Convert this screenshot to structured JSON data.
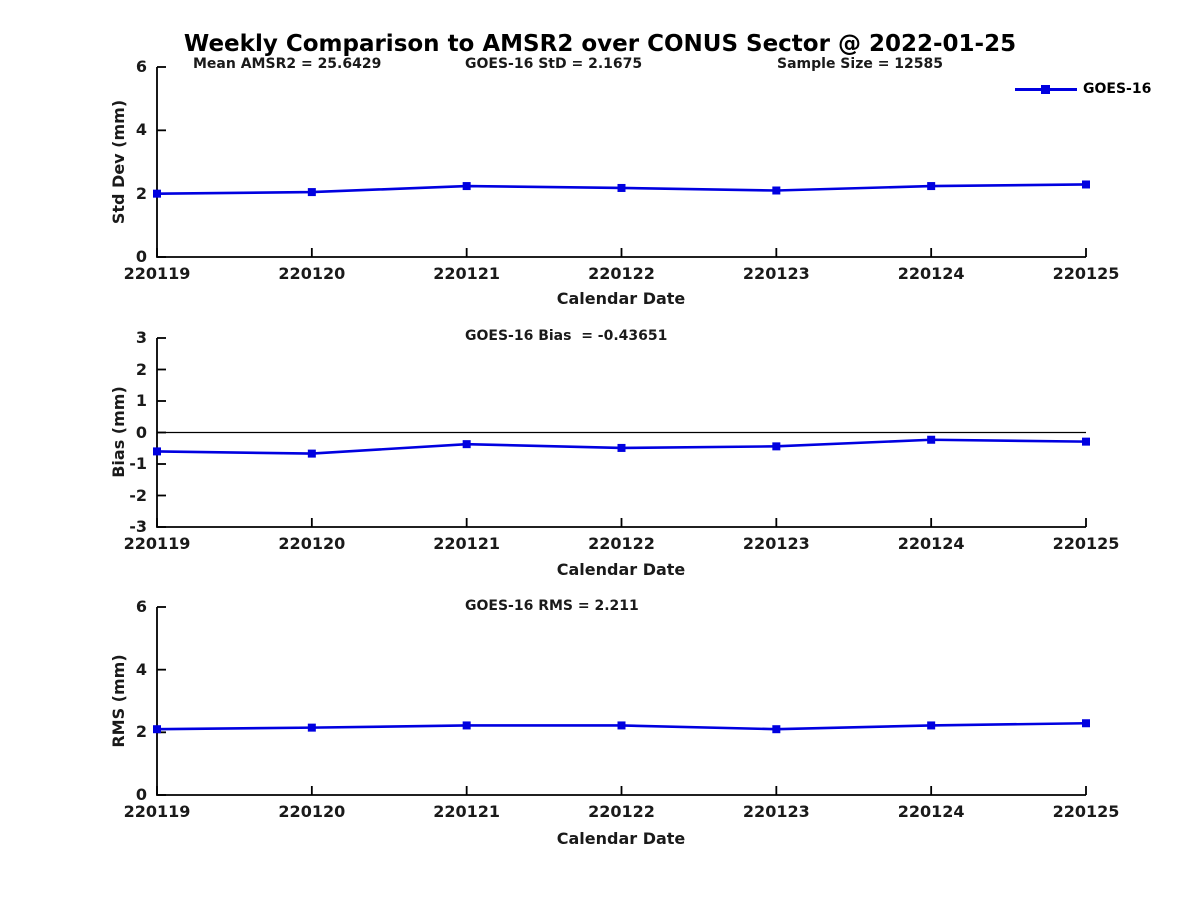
{
  "title": "Weekly Comparison to AMSR2 over CONUS Sector @ 2022-01-25",
  "line_color": "#0000e0",
  "axis_color": "#000000",
  "legend": {
    "label": "GOES-16",
    "position": "top-right"
  },
  "chart_data": [
    {
      "type": "line",
      "categories": [
        "220119",
        "220120",
        "220121",
        "220122",
        "220123",
        "220124",
        "220125"
      ],
      "series": [
        {
          "name": "GOES-16",
          "values": [
            2.0,
            2.05,
            2.24,
            2.18,
            2.1,
            2.24,
            2.29
          ]
        }
      ],
      "ylabel": "Std Dev (mm)",
      "xlabel": "Calendar Date",
      "ylim": [
        0,
        6
      ],
      "yticks": [
        0,
        2,
        4,
        6
      ],
      "grid": false,
      "zero_line": false,
      "marker": "square",
      "annotations": [
        "Mean AMSR2 = 25.6429",
        "GOES-16 StD = 2.1675",
        "Sample Size = 12585"
      ]
    },
    {
      "type": "line",
      "categories": [
        "220119",
        "220120",
        "220121",
        "220122",
        "220123",
        "220124",
        "220125"
      ],
      "series": [
        {
          "name": "GOES-16",
          "values": [
            -0.6,
            -0.67,
            -0.37,
            -0.49,
            -0.44,
            -0.23,
            -0.29
          ]
        }
      ],
      "ylabel": "Bias (mm)",
      "xlabel": "Calendar Date",
      "ylim": [
        -3,
        3
      ],
      "yticks": [
        3,
        2,
        1,
        0,
        -1,
        -2,
        -3
      ],
      "grid": false,
      "zero_line": true,
      "marker": "square",
      "annotations": [
        "GOES-16 Bias  = -0.43651"
      ]
    },
    {
      "type": "line",
      "categories": [
        "220119",
        "220120",
        "220121",
        "220122",
        "220123",
        "220124",
        "220125"
      ],
      "series": [
        {
          "name": "GOES-16",
          "values": [
            2.1,
            2.15,
            2.22,
            2.22,
            2.1,
            2.22,
            2.29
          ]
        }
      ],
      "ylabel": "RMS (mm)",
      "xlabel": "Calendar Date",
      "ylim": [
        0,
        6
      ],
      "yticks": [
        0,
        2,
        4,
        6
      ],
      "grid": false,
      "zero_line": false,
      "marker": "square",
      "annotations": [
        "GOES-16 RMS = 2.211"
      ]
    }
  ]
}
